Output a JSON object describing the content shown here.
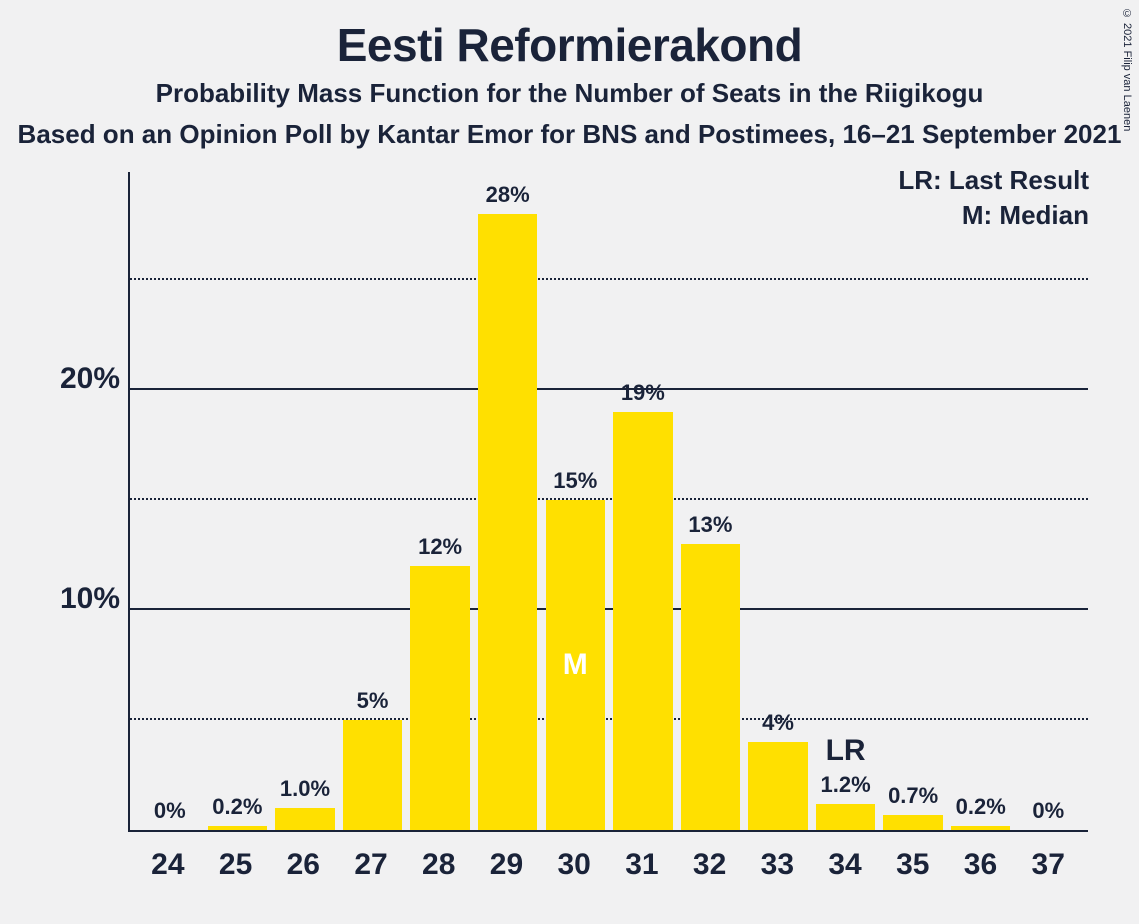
{
  "copyright": "© 2021 Filip van Laenen",
  "title": "Eesti Reformierakond",
  "subtitle": "Probability Mass Function for the Number of Seats in the Riigikogu",
  "source": "Based on an Opinion Poll by Kantar Emor for BNS and Postimees, 16–21 September 2021",
  "legend": {
    "lr": "LR: Last Result",
    "m": "M: Median"
  },
  "style": {
    "background": "#f1f1f2",
    "text_color": "#1a2339",
    "bar_color": "#ffe000",
    "title_fontsize": 46,
    "subtitle_fontsize": 26,
    "axis_fontsize": 30,
    "bar_label_fontsize": 22,
    "bar_width_pct": 88
  },
  "chart": {
    "type": "bar",
    "ylim": [
      0,
      30
    ],
    "yticks_major": [
      10,
      20
    ],
    "yticks_minor": [
      5,
      15,
      25
    ],
    "ytick_labels": {
      "10": "10%",
      "20": "20%"
    },
    "categories": [
      "24",
      "25",
      "26",
      "27",
      "28",
      "29",
      "30",
      "31",
      "32",
      "33",
      "34",
      "35",
      "36",
      "37"
    ],
    "values": [
      0,
      0.2,
      1.0,
      5,
      12,
      28,
      15,
      19,
      13,
      4,
      1.2,
      0.7,
      0.2,
      0
    ],
    "labels": [
      "0%",
      "0.2%",
      "1.0%",
      "5%",
      "12%",
      "28%",
      "15%",
      "19%",
      "13%",
      "4%",
      "1.2%",
      "0.7%",
      "0.2%",
      "0%"
    ],
    "median_index": 6,
    "median_label": "M",
    "lr_index": 10,
    "lr_label": "LR"
  }
}
